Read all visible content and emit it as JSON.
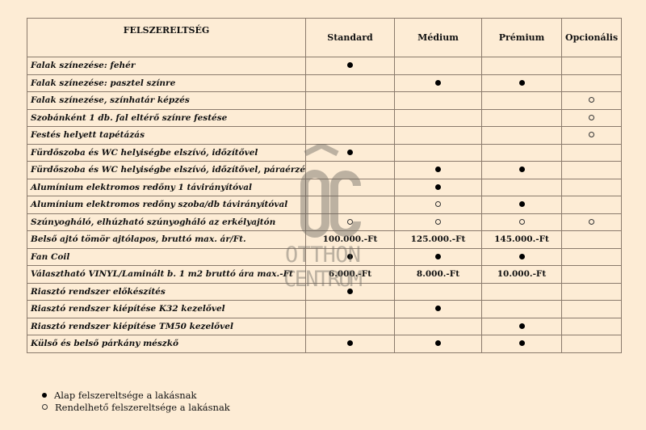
{
  "table": {
    "headers": [
      "FELSZERELTSÉG",
      "Standard",
      "Médium",
      "Prémium",
      "Opcionális"
    ],
    "rows": [
      {
        "label": "Falak színezése: fehér",
        "cells": [
          "filled",
          "",
          "",
          ""
        ]
      },
      {
        "label": "Falak színezése: pasztel színre",
        "cells": [
          "",
          "filled",
          "filled",
          ""
        ]
      },
      {
        "label": "Falak színezése, színhatár képzés",
        "cells": [
          "",
          "",
          "",
          "open"
        ]
      },
      {
        "label": "Szobánként 1 db. fal eltérő színre festése",
        "cells": [
          "",
          "",
          "",
          "open"
        ]
      },
      {
        "label": "Festés helyett tapétázás",
        "cells": [
          "",
          "",
          "",
          "open"
        ]
      },
      {
        "label": "Fürdőszoba és WC helyiségbe elszívó, időzítővel",
        "cells": [
          "filled",
          "",
          "",
          ""
        ]
      },
      {
        "label": "Fürdőszoba és WC helyiségbe elszívó, időzítővel, páraérzékelővel",
        "cells": [
          "",
          "filled",
          "filled",
          ""
        ]
      },
      {
        "label": "Alumínium elektromos redőny 1 távirányítóval",
        "cells": [
          "",
          "filled",
          "",
          ""
        ]
      },
      {
        "label": "Alumínium elektromos redőny szoba/db távirányítóval",
        "cells": [
          "",
          "open",
          "filled",
          ""
        ]
      },
      {
        "label": "Szúnyogháló, elhúzható szúnyogháló az erkélyajtón",
        "cells": [
          "open",
          "open",
          "open",
          "open"
        ]
      },
      {
        "label": "Belső ajtó tömör ajtólapos, bruttó max. ár/Ft.",
        "cells": [
          "100.000.-Ft",
          "125.000.-Ft",
          "145.000.-Ft",
          ""
        ]
      },
      {
        "label": "Fan Coil",
        "cells": [
          "filled",
          "filled",
          "filled",
          ""
        ]
      },
      {
        "label": "Választható VINYL/Laminált b. 1 m2 bruttó ára max.-Ft",
        "cells": [
          "6.000.-Ft",
          "8.000.-Ft",
          "10.000.-Ft",
          ""
        ]
      },
      {
        "label": "Riasztó rendszer előkészítés",
        "cells": [
          "filled",
          "",
          "",
          ""
        ]
      },
      {
        "label": "Riasztó rendszer kiépítése K32 kezelővel",
        "cells": [
          "",
          "filled",
          "",
          ""
        ]
      },
      {
        "label": "Riasztó rendszer kiépítése TM50 kezelővel",
        "cells": [
          "",
          "",
          "filled",
          ""
        ]
      },
      {
        "label": "Külső és belső párkány mészkő",
        "cells": [
          "filled",
          "filled",
          "filled",
          ""
        ]
      }
    ]
  },
  "legend": {
    "filled": "Alap felszereltsége a lakásnak",
    "open": "Rendelhető felszereltsége a lakásnak"
  },
  "watermark": {
    "monogram": "ÔC",
    "line1": "OTTHON",
    "line2": "CENTRUM"
  },
  "colors": {
    "background": "#fdecd5",
    "border": "#8a7a6c",
    "watermark": "#6e6a63"
  }
}
